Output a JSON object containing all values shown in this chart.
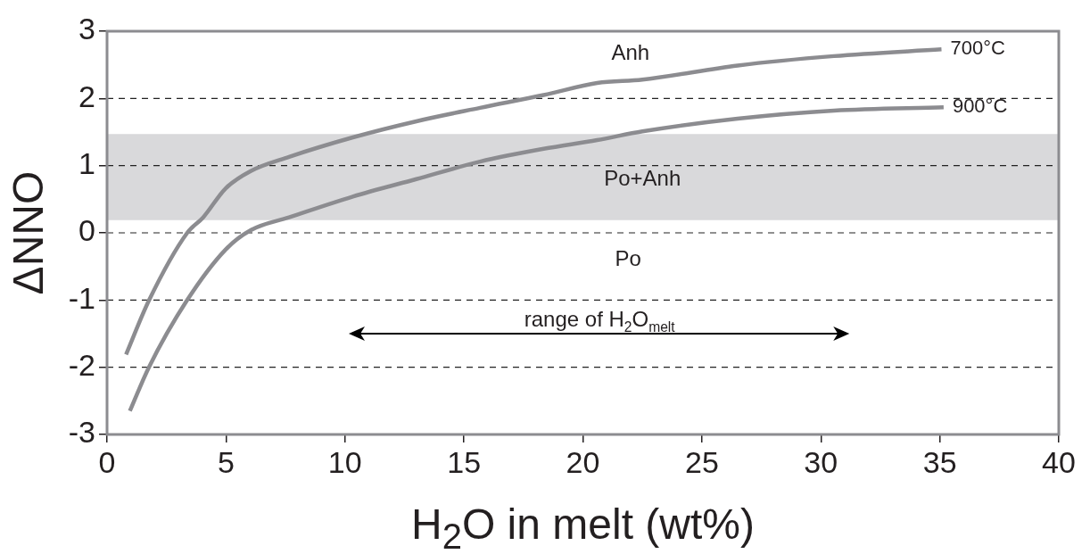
{
  "chart_data": {
    "type": "line",
    "xlabel": "H$_{2}$O in melt (wt%)",
    "ylabel": "ΔNNO",
    "xlim": [
      0,
      40
    ],
    "xticks": [
      0,
      5,
      10,
      15,
      20,
      25,
      30,
      35,
      40
    ],
    "ylim": [
      -3,
      3
    ],
    "yticks": [
      -3,
      -2,
      -1,
      0,
      1,
      2,
      3
    ],
    "grid": "y",
    "line_style": "solid",
    "marker": "none",
    "series": [
      {
        "name": "700°C",
        "color": "#8c8c90",
        "x": [
          0.8,
          1.77,
          3.37,
          4.04,
          4.98,
          6.04,
          7.65,
          10.33,
          13.0,
          15.68,
          18.35,
          20.6,
          22.5,
          26.5,
          30.55,
          35.07
        ],
        "values": [
          -1.81,
          -1.0,
          0,
          0.23,
          0.66,
          0.92,
          1.13,
          1.42,
          1.66,
          1.86,
          2.05,
          2.23,
          2.28,
          2.49,
          2.63,
          2.73
        ]
      },
      {
        "name": "900°C",
        "color": "#8c8c90",
        "x": [
          0.96,
          1.76,
          3.37,
          4.98,
          6.04,
          7.65,
          10.33,
          13.0,
          15.68,
          18.35,
          20.6,
          22.5,
          26.5,
          30.55,
          35.16
        ],
        "values": [
          -2.65,
          -2.0,
          -1.0,
          -0.25,
          0.04,
          0.23,
          0.54,
          0.8,
          1.06,
          1.25,
          1.38,
          1.51,
          1.7,
          1.82,
          1.87
        ]
      }
    ],
    "bands": [
      {
        "axis": "y",
        "from": 0.19,
        "to": 1.47,
        "color": "#d9d9db"
      }
    ],
    "annotations": [
      "Anh",
      "Po+Anh",
      "Po",
      "range of H$_{2}$O$_{melt}$"
    ]
  }
}
